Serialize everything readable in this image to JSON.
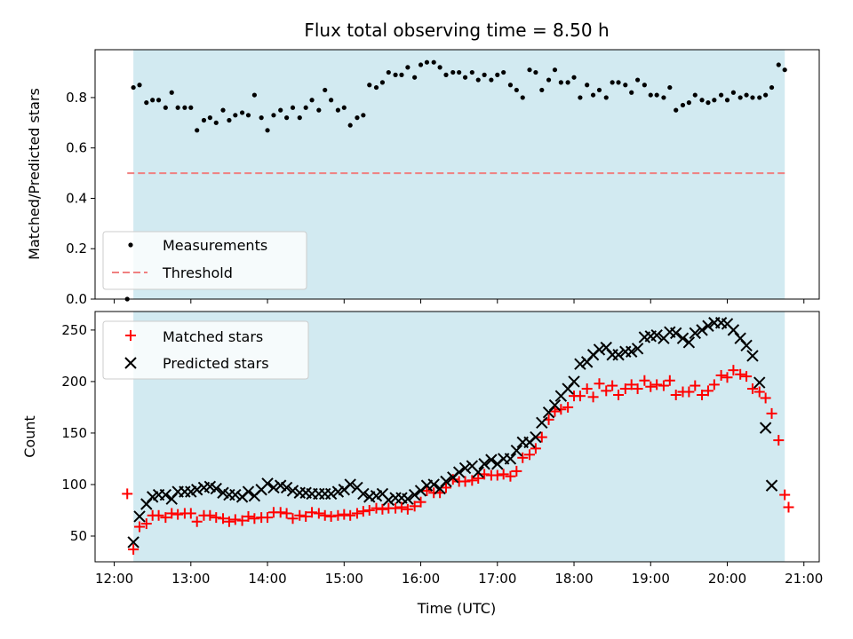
{
  "chart_data": [
    {
      "type": "scatter",
      "panel": "top",
      "title": "Flux total observing time = 8.50 h",
      "ylabel": "Matched/Predicted stars",
      "xlabel": "",
      "xlim": [
        11.75,
        21.2
      ],
      "ylim": [
        0,
        0.99
      ],
      "yticks": [
        0.0,
        0.2,
        0.4,
        0.6,
        0.8
      ],
      "ytick_labels": [
        "0.0",
        "0.2",
        "0.4",
        "0.6",
        "0.8"
      ],
      "shaded_span": [
        12.25,
        20.75
      ],
      "legend_position": "lower-left",
      "series": [
        {
          "name": "Measurements",
          "marker": "dot",
          "color": "#000000",
          "x": [
            12.17,
            12.25,
            12.33,
            12.42,
            12.5,
            12.58,
            12.67,
            12.75,
            12.83,
            12.92,
            13.0,
            13.08,
            13.17,
            13.25,
            13.33,
            13.42,
            13.5,
            13.58,
            13.67,
            13.75,
            13.83,
            13.92,
            14.0,
            14.08,
            14.17,
            14.25,
            14.33,
            14.42,
            14.5,
            14.58,
            14.67,
            14.75,
            14.83,
            14.92,
            15.0,
            15.08,
            15.17,
            15.25,
            15.33,
            15.42,
            15.5,
            15.58,
            15.67,
            15.75,
            15.83,
            15.92,
            16.0,
            16.08,
            16.17,
            16.25,
            16.33,
            16.42,
            16.5,
            16.58,
            16.67,
            16.75,
            16.83,
            16.92,
            17.0,
            17.08,
            17.17,
            17.25,
            17.33,
            17.42,
            17.5,
            17.58,
            17.67,
            17.75,
            17.83,
            17.92,
            18.0,
            18.08,
            18.17,
            18.25,
            18.33,
            18.42,
            18.5,
            18.58,
            18.67,
            18.75,
            18.83,
            18.92,
            19.0,
            19.08,
            19.17,
            19.25,
            19.33,
            19.42,
            19.5,
            19.58,
            19.67,
            19.75,
            19.83,
            19.92,
            20.0,
            20.08,
            20.17,
            20.25,
            20.33,
            20.42,
            20.5,
            20.58,
            20.67,
            20.75
          ],
          "y": [
            0.0,
            0.84,
            0.85,
            0.78,
            0.79,
            0.79,
            0.76,
            0.82,
            0.76,
            0.76,
            0.76,
            0.67,
            0.71,
            0.72,
            0.7,
            0.75,
            0.71,
            0.73,
            0.74,
            0.73,
            0.81,
            0.72,
            0.67,
            0.73,
            0.75,
            0.72,
            0.76,
            0.72,
            0.76,
            0.79,
            0.75,
            0.83,
            0.79,
            0.75,
            0.76,
            0.69,
            0.72,
            0.73,
            0.85,
            0.84,
            0.86,
            0.9,
            0.89,
            0.89,
            0.92,
            0.88,
            0.93,
            0.94,
            0.94,
            0.92,
            0.89,
            0.9,
            0.9,
            0.88,
            0.9,
            0.87,
            0.89,
            0.87,
            0.89,
            0.9,
            0.85,
            0.83,
            0.8,
            0.91,
            0.9,
            0.83,
            0.87,
            0.91,
            0.86,
            0.86,
            0.88,
            0.8,
            0.85,
            0.81,
            0.83,
            0.8,
            0.86,
            0.86,
            0.85,
            0.82,
            0.87,
            0.85,
            0.81,
            0.81,
            0.8,
            0.84,
            0.75,
            0.77,
            0.78,
            0.81,
            0.79,
            0.78,
            0.79,
            0.81,
            0.79,
            0.82,
            0.8,
            0.81,
            0.8,
            0.8,
            0.81,
            0.84,
            0.93,
            0.91
          ]
        },
        {
          "name": "Threshold",
          "marker": "dashed-line",
          "color": "#f08080",
          "x": [
            12.17,
            20.75
          ],
          "y": [
            0.5,
            0.5
          ]
        }
      ]
    },
    {
      "type": "scatter",
      "panel": "bottom",
      "title": "",
      "xlabel": "Time (UTC)",
      "ylabel": "Count",
      "xlim": [
        11.75,
        21.2
      ],
      "ylim": [
        25,
        268
      ],
      "yticks": [
        50,
        100,
        150,
        200,
        250
      ],
      "ytick_labels": [
        "50",
        "100",
        "150",
        "200",
        "250"
      ],
      "xticks": [
        12,
        13,
        14,
        15,
        16,
        17,
        18,
        19,
        20,
        21
      ],
      "xtick_labels": [
        "12:00",
        "13:00",
        "14:00",
        "15:00",
        "16:00",
        "17:00",
        "18:00",
        "19:00",
        "20:00",
        "21:00"
      ],
      "shaded_span": [
        12.25,
        20.75
      ],
      "legend_position": "upper-left",
      "series": [
        {
          "name": "Matched stars",
          "marker": "plus",
          "color": "#ff0000",
          "x": [
            12.17,
            12.25,
            12.33,
            12.42,
            12.5,
            12.58,
            12.67,
            12.75,
            12.83,
            12.92,
            13.0,
            13.08,
            13.17,
            13.25,
            13.33,
            13.42,
            13.5,
            13.58,
            13.67,
            13.75,
            13.83,
            13.92,
            14.0,
            14.08,
            14.17,
            14.25,
            14.33,
            14.42,
            14.5,
            14.58,
            14.67,
            14.75,
            14.83,
            14.92,
            15.0,
            15.08,
            15.17,
            15.25,
            15.33,
            15.42,
            15.5,
            15.58,
            15.67,
            15.75,
            15.83,
            15.92,
            16.0,
            16.08,
            16.17,
            16.25,
            16.33,
            16.42,
            16.5,
            16.58,
            16.67,
            16.75,
            16.83,
            16.92,
            17.0,
            17.08,
            17.17,
            17.25,
            17.33,
            17.42,
            17.5,
            17.58,
            17.67,
            17.75,
            17.83,
            17.92,
            18.0,
            18.08,
            18.17,
            18.25,
            18.33,
            18.42,
            18.5,
            18.58,
            18.67,
            18.75,
            18.83,
            18.92,
            19.0,
            19.08,
            19.17,
            19.25,
            19.33,
            19.42,
            19.5,
            19.58,
            19.67,
            19.75,
            19.83,
            19.92,
            20.0,
            20.08,
            20.17,
            20.25,
            20.33,
            20.42,
            20.5,
            20.58,
            20.67,
            20.75,
            20.8
          ],
          "y": [
            91,
            37,
            59,
            62,
            70,
            70,
            68,
            72,
            71,
            72,
            72,
            64,
            70,
            70,
            68,
            67,
            64,
            66,
            65,
            69,
            67,
            68,
            68,
            73,
            73,
            72,
            67,
            70,
            69,
            73,
            72,
            70,
            69,
            70,
            71,
            70,
            72,
            74,
            75,
            77,
            76,
            77,
            77,
            78,
            76,
            79,
            83,
            94,
            92,
            92,
            97,
            105,
            103,
            103,
            104,
            106,
            110,
            109,
            109,
            110,
            108,
            113,
            126,
            129,
            135,
            146,
            163,
            171,
            173,
            175,
            186,
            186,
            193,
            185,
            198,
            191,
            196,
            187,
            193,
            197,
            193,
            201,
            195,
            197,
            196,
            201,
            187,
            190,
            190,
            196,
            187,
            191,
            197,
            206,
            204,
            211,
            207,
            205,
            193,
            190,
            184,
            169,
            143,
            90,
            78
          ]
        },
        {
          "name": "Predicted stars",
          "marker": "x",
          "color": "#000000",
          "x": [
            12.17,
            12.25,
            12.33,
            12.42,
            12.5,
            12.58,
            12.67,
            12.75,
            12.83,
            12.92,
            13.0,
            13.08,
            13.17,
            13.25,
            13.33,
            13.42,
            13.5,
            13.58,
            13.67,
            13.75,
            13.83,
            13.92,
            14.0,
            14.08,
            14.17,
            14.25,
            14.33,
            14.42,
            14.5,
            14.58,
            14.67,
            14.75,
            14.83,
            14.92,
            15.0,
            15.08,
            15.17,
            15.25,
            15.33,
            15.42,
            15.5,
            15.58,
            15.67,
            15.75,
            15.83,
            15.92,
            16.0,
            16.08,
            16.17,
            16.25,
            16.33,
            16.42,
            16.5,
            16.58,
            16.67,
            16.75,
            16.83,
            16.92,
            17.0,
            17.08,
            17.17,
            17.25,
            17.33,
            17.42,
            17.5,
            17.58,
            17.67,
            17.75,
            17.83,
            17.92,
            18.0,
            18.08,
            18.17,
            18.25,
            18.33,
            18.42,
            18.5,
            18.58,
            18.67,
            18.75,
            18.83,
            18.92,
            19.0,
            19.08,
            19.17,
            19.25,
            19.33,
            19.42,
            19.5,
            19.58,
            19.67,
            19.75,
            19.83,
            19.92,
            20.0,
            20.08,
            20.17,
            20.25,
            20.33,
            20.42,
            20.5,
            20.58,
            20.67,
            20.75,
            20.8
          ],
          "y": [
            null,
            44,
            69,
            81,
            88,
            90,
            90,
            86,
            93,
            93,
            93,
            95,
            97,
            98,
            96,
            92,
            90,
            90,
            88,
            93,
            89,
            95,
            101,
            97,
            99,
            97,
            94,
            92,
            92,
            91,
            91,
            91,
            91,
            93,
            95,
            100,
            97,
            91,
            88,
            89,
            91,
            85,
            87,
            87,
            86,
            90,
            94,
            99,
            100,
            96,
            103,
            107,
            112,
            116,
            118,
            112,
            120,
            124,
            120,
            125,
            125,
            133,
            141,
            141,
            146,
            160,
            170,
            177,
            186,
            193,
            200,
            217,
            219,
            226,
            231,
            233,
            226,
            226,
            229,
            229,
            232,
            243,
            244,
            245,
            242,
            248,
            247,
            242,
            238,
            247,
            250,
            254,
            257,
            257,
            256,
            250,
            242,
            235,
            225,
            199,
            155,
            99,
            null,
            null,
            null
          ]
        }
      ]
    }
  ]
}
